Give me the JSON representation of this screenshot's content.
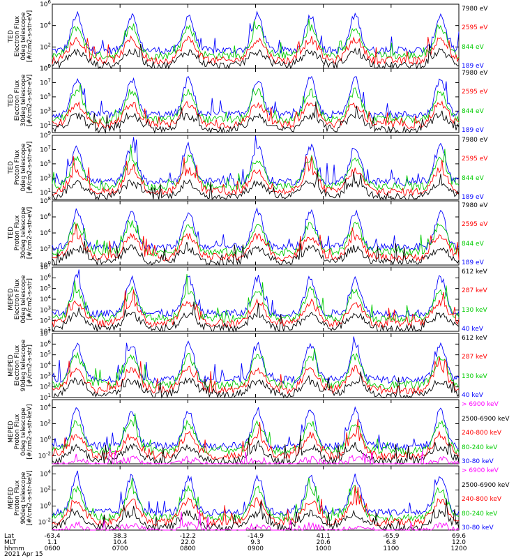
{
  "chart_data": {
    "type": "line",
    "xlim": [
      "0600",
      "1200"
    ],
    "panels": [
      {
        "ylabel": [
          "TED",
          "Electron Flux",
          "0deg telescope",
          "[#/cm2-s-str-eV]"
        ],
        "y_ticks": [
          "10^6",
          "10^4",
          "10^2",
          "10^0"
        ],
        "ylog_range": [
          0,
          6
        ],
        "legend": [
          {
            "label": "7980 eV",
            "color": "#000000"
          },
          {
            "label": "2595 eV",
            "color": "#ff0000"
          },
          {
            "label": "844 eV",
            "color": "#00cc00"
          },
          {
            "label": "189 eV",
            "color": "#0000ff"
          }
        ]
      },
      {
        "ylabel": [
          "TED",
          "Electron Flux",
          "30deg telescope",
          "[#/cm2-s-str-eV]"
        ],
        "y_ticks": [
          "10^9",
          "10^7",
          "10^5",
          "10^3",
          "10^1"
        ],
        "ylog_range": [
          0,
          9
        ],
        "legend": [
          {
            "label": "7980 eV",
            "color": "#000000"
          },
          {
            "label": "2595 eV",
            "color": "#ff0000"
          },
          {
            "label": "844 eV",
            "color": "#00cc00"
          },
          {
            "label": "189 eV",
            "color": "#0000ff"
          }
        ]
      },
      {
        "ylabel": [
          "TED",
          "Proton Flux",
          "0deg telescope",
          "[#/cm2-s-str-eV]"
        ],
        "y_ticks": [
          "10^9",
          "10^7",
          "10^5",
          "10^3",
          "10^1"
        ],
        "ylog_range": [
          0,
          9
        ],
        "legend": [
          {
            "label": "7980 eV",
            "color": "#000000"
          },
          {
            "label": "2595 eV",
            "color": "#ff0000"
          },
          {
            "label": "844 eV",
            "color": "#00cc00"
          },
          {
            "label": "189 eV",
            "color": "#0000ff"
          }
        ]
      },
      {
        "ylabel": [
          "TED",
          "Proton Flux",
          "30deg telescope",
          "[#/cm2-s-str-eV]"
        ],
        "y_ticks": [
          "10^8",
          "10^6",
          "10^4",
          "10^2",
          "10^0"
        ],
        "ylog_range": [
          0,
          8
        ],
        "legend": [
          {
            "label": "7980 eV",
            "color": "#000000"
          },
          {
            "label": "2595 eV",
            "color": "#ff0000"
          },
          {
            "label": "844 eV",
            "color": "#00cc00"
          },
          {
            "label": "189 eV",
            "color": "#0000ff"
          }
        ]
      },
      {
        "ylabel": [
          "MEPED",
          "Electron Flux",
          "0deg telescope",
          "[#/cm2-s-str]"
        ],
        "y_ticks": [
          "10^7",
          "10^6",
          "10^5",
          "10^4",
          "10^3",
          "10^2",
          "10^1"
        ],
        "ylog_range": [
          1,
          7
        ],
        "legend": [
          {
            "label": "612 keV",
            "color": "#000000"
          },
          {
            "label": "287 keV",
            "color": "#ff0000"
          },
          {
            "label": "130 keV",
            "color": "#00cc00"
          },
          {
            "label": "40 keV",
            "color": "#0000ff"
          }
        ]
      },
      {
        "ylabel": [
          "MEPED",
          "Electron Flux",
          "90deg telescope",
          "[#/cm2-s-str]"
        ],
        "y_ticks": [
          "10^7",
          "10^6",
          "10^5",
          "10^4",
          "10^3",
          "10^2",
          "10^1"
        ],
        "ylog_range": [
          1,
          7
        ],
        "legend": [
          {
            "label": "612 keV",
            "color": "#000000"
          },
          {
            "label": "287 keV",
            "color": "#ff0000"
          },
          {
            "label": "130 keV",
            "color": "#00cc00"
          },
          {
            "label": "40 keV",
            "color": "#0000ff"
          }
        ]
      },
      {
        "ylabel": [
          "MEPED",
          "Proton Flux",
          "0deg telescope",
          "[#/cm2-s-str-keV]"
        ],
        "y_ticks": [
          "10^4",
          "10^2",
          "10^0",
          "10^-2"
        ],
        "ylog_range": [
          -3,
          5
        ],
        "legend": [
          {
            "label": "> 6900 keV",
            "color": "#ff00ff"
          },
          {
            "label": "2500-6900 keV",
            "color": "#000000"
          },
          {
            "label": "240-800 keV",
            "color": "#ff0000"
          },
          {
            "label": "80-240 keV",
            "color": "#00cc00"
          },
          {
            "label": "30-80 keV",
            "color": "#0000ff"
          }
        ]
      },
      {
        "ylabel": [
          "MEPED",
          "Proton Flux",
          "90deg telescope",
          "[#/cm2-s-str-keV]"
        ],
        "y_ticks": [
          "10^4",
          "10^2",
          "10^0",
          "10^-2"
        ],
        "ylog_range": [
          -3,
          5
        ],
        "legend": [
          {
            "label": "> 6900 keV",
            "color": "#ff00ff"
          },
          {
            "label": "2500-6900 keV",
            "color": "#000000"
          },
          {
            "label": "240-800 keV",
            "color": "#ff0000"
          },
          {
            "label": "80-240 keV",
            "color": "#00cc00"
          },
          {
            "label": "30-80 keV",
            "color": "#0000ff"
          }
        ]
      }
    ],
    "x_axis": {
      "row_labels": [
        "Lat",
        "MLT",
        "hhmm"
      ],
      "date": "2021 Apr 15",
      "columns": [
        {
          "lat": "-63.4",
          "mlt": "1.1",
          "hhmm": "0600"
        },
        {
          "lat": "38.3",
          "mlt": "10.4",
          "hhmm": "0700"
        },
        {
          "lat": "-12.2",
          "mlt": "22.0",
          "hhmm": "0800"
        },
        {
          "lat": "-14.9",
          "mlt": "9.3",
          "hhmm": "0900"
        },
        {
          "lat": "41.1",
          "mlt": "20.6",
          "hhmm": "1000"
        },
        {
          "lat": "-65.9",
          "mlt": "6.8",
          "hhmm": "1100"
        },
        {
          "lat": "69.6",
          "mlt": "12.0",
          "hhmm": "1200"
        }
      ]
    },
    "events": [
      0.06,
      0.195,
      0.335,
      0.505,
      0.635,
      0.745,
      0.955
    ]
  }
}
